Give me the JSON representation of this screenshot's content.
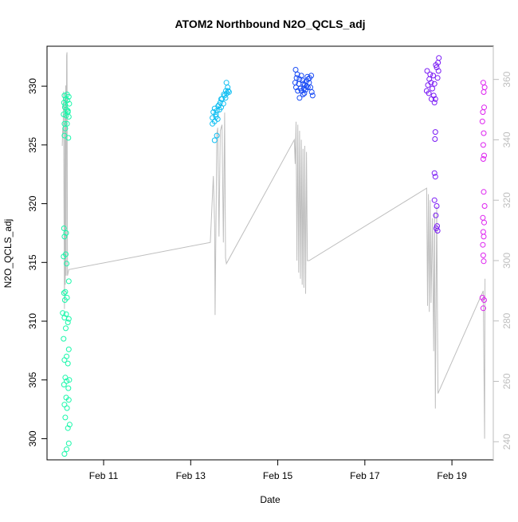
{
  "chart_data": {
    "type": "scatter",
    "title": "ATOM2 Northbound N2O_QCLS_adj",
    "xlabel": "Date",
    "ylabel": "N2O_QCLS_adj",
    "x_unit": "days since Feb 10",
    "xlim": [
      9.7,
      19.95
    ],
    "ylim": [
      298.2,
      333.4
    ],
    "y2lim": [
      234,
      371
    ],
    "x_ticks": [
      {
        "value": 11,
        "label": "Feb 11"
      },
      {
        "value": 13,
        "label": "Feb 13"
      },
      {
        "value": 15,
        "label": "Feb 15"
      },
      {
        "value": 17,
        "label": "Feb 17"
      },
      {
        "value": 19,
        "label": "Feb 19"
      }
    ],
    "y_ticks": [
      300,
      305,
      310,
      315,
      320,
      325,
      330
    ],
    "y2_ticks": [
      240,
      260,
      280,
      300,
      320,
      340,
      360
    ],
    "colors": {
      "flight1": "#19f7aa",
      "flight2": "#11bff2",
      "flight3": "#1a4cf5",
      "flight4": "#7a1af5",
      "flight5": "#dd22f0",
      "secondary_line": "#bebebe",
      "axis": "#000000"
    },
    "series": [
      {
        "name": "flight1",
        "color": "#19f7aa",
        "points": [
          [
            10.1,
            298.7
          ],
          [
            10.15,
            299.1
          ],
          [
            10.2,
            299.6
          ],
          [
            10.18,
            300.9
          ],
          [
            10.22,
            301.2
          ],
          [
            10.12,
            301.8
          ],
          [
            10.16,
            302.6
          ],
          [
            10.1,
            302.9
          ],
          [
            10.2,
            303.3
          ],
          [
            10.14,
            303.5
          ],
          [
            10.19,
            304.3
          ],
          [
            10.09,
            304.6
          ],
          [
            10.15,
            304.9
          ],
          [
            10.21,
            305.0
          ],
          [
            10.12,
            305.2
          ],
          [
            10.18,
            306.4
          ],
          [
            10.1,
            306.7
          ],
          [
            10.15,
            307.0
          ],
          [
            10.2,
            307.6
          ],
          [
            10.08,
            308.5
          ],
          [
            10.13,
            309.4
          ],
          [
            10.18,
            309.9
          ],
          [
            10.1,
            310.3
          ],
          [
            10.14,
            310.6
          ],
          [
            10.2,
            310.2
          ],
          [
            10.06,
            310.7
          ],
          [
            10.11,
            311.8
          ],
          [
            10.16,
            312.0
          ],
          [
            10.09,
            312.4
          ],
          [
            10.12,
            312.5
          ],
          [
            10.2,
            313.4
          ],
          [
            10.15,
            314.9
          ],
          [
            10.08,
            315.5
          ],
          [
            10.13,
            315.7
          ],
          [
            10.1,
            317.2
          ],
          [
            10.14,
            317.5
          ],
          [
            10.09,
            317.9
          ],
          [
            10.1,
            325.8
          ],
          [
            10.19,
            325.6
          ],
          [
            10.12,
            326.4
          ],
          [
            10.16,
            326.8
          ],
          [
            10.1,
            326.8
          ],
          [
            10.2,
            327.4
          ],
          [
            10.08,
            327.6
          ],
          [
            10.14,
            327.5
          ],
          [
            10.18,
            327.9
          ],
          [
            10.11,
            328.2
          ],
          [
            10.15,
            328.0
          ],
          [
            10.21,
            328.5
          ],
          [
            10.09,
            328.6
          ],
          [
            10.17,
            328.8
          ],
          [
            10.13,
            328.9
          ],
          [
            10.2,
            329.1
          ],
          [
            10.1,
            329.2
          ],
          [
            10.16,
            329.3
          ],
          [
            10.12,
            328.4
          ],
          [
            10.18,
            327.8
          ]
        ]
      },
      {
        "name": "flight2",
        "color": "#11bff2",
        "points": [
          [
            13.55,
            325.4
          ],
          [
            13.6,
            325.8
          ],
          [
            13.5,
            326.8
          ],
          [
            13.55,
            327.0
          ],
          [
            13.62,
            327.2
          ],
          [
            13.5,
            327.3
          ],
          [
            13.58,
            327.6
          ],
          [
            13.52,
            327.8
          ],
          [
            13.66,
            328.0
          ],
          [
            13.6,
            327.9
          ],
          [
            13.55,
            328.1
          ],
          [
            13.7,
            328.2
          ],
          [
            13.63,
            328.3
          ],
          [
            13.75,
            328.5
          ],
          [
            13.68,
            328.6
          ],
          [
            13.72,
            328.9
          ],
          [
            13.8,
            329.0
          ],
          [
            13.78,
            329.2
          ],
          [
            13.83,
            329.4
          ],
          [
            13.86,
            329.6
          ],
          [
            13.81,
            329.6
          ],
          [
            13.76,
            329.3
          ],
          [
            13.88,
            329.5
          ],
          [
            13.85,
            329.9
          ],
          [
            13.82,
            330.3
          ],
          [
            13.7,
            328.9
          ],
          [
            13.65,
            328.4
          ],
          [
            13.58,
            327.4
          ]
        ]
      },
      {
        "name": "flight3",
        "color": "#1a4cf5",
        "points": [
          [
            15.4,
            330.3
          ],
          [
            15.43,
            330.7
          ],
          [
            15.41,
            331.4
          ],
          [
            15.45,
            331.0
          ],
          [
            15.5,
            330.6
          ],
          [
            15.48,
            330.2
          ],
          [
            15.52,
            329.8
          ],
          [
            15.55,
            329.6
          ],
          [
            15.58,
            329.3
          ],
          [
            15.6,
            329.8
          ],
          [
            15.62,
            330.1
          ],
          [
            15.65,
            330.4
          ],
          [
            15.68,
            330.8
          ],
          [
            15.7,
            330.6
          ],
          [
            15.72,
            330.3
          ],
          [
            15.75,
            329.9
          ],
          [
            15.78,
            329.5
          ],
          [
            15.8,
            329.2
          ],
          [
            15.5,
            329.0
          ],
          [
            15.46,
            329.6
          ],
          [
            15.57,
            330.5
          ],
          [
            15.66,
            330.0
          ],
          [
            15.73,
            330.7
          ],
          [
            15.42,
            329.9
          ],
          [
            15.61,
            329.4
          ],
          [
            15.69,
            329.9
          ],
          [
            15.77,
            330.9
          ],
          [
            15.54,
            330.9
          ],
          [
            15.59,
            330.2
          ],
          [
            15.64,
            329.7
          ]
        ]
      },
      {
        "name": "flight4",
        "color": "#7a1af5",
        "points": [
          [
            18.42,
            329.6
          ],
          [
            18.45,
            330.1
          ],
          [
            18.48,
            330.6
          ],
          [
            18.5,
            331.0
          ],
          [
            18.43,
            331.3
          ],
          [
            18.52,
            330.3
          ],
          [
            18.55,
            329.8
          ],
          [
            18.58,
            329.2
          ],
          [
            18.6,
            328.6
          ],
          [
            18.62,
            328.9
          ],
          [
            18.65,
            331.6
          ],
          [
            18.68,
            332.0
          ],
          [
            18.7,
            332.4
          ],
          [
            18.63,
            331.8
          ],
          [
            18.57,
            330.9
          ],
          [
            18.47,
            329.4
          ],
          [
            18.53,
            328.9
          ],
          [
            18.6,
            330.2
          ],
          [
            18.67,
            330.7
          ],
          [
            18.69,
            331.3
          ],
          [
            18.62,
            326.1
          ],
          [
            18.61,
            325.5
          ],
          [
            18.6,
            322.6
          ],
          [
            18.62,
            322.3
          ],
          [
            18.6,
            320.3
          ],
          [
            18.65,
            319.8
          ],
          [
            18.63,
            319.0
          ],
          [
            18.66,
            318.1
          ],
          [
            18.64,
            317.9
          ],
          [
            18.67,
            317.7
          ]
        ]
      },
      {
        "name": "flight5",
        "color": "#dd22f0",
        "points": [
          [
            19.72,
            330.3
          ],
          [
            19.75,
            329.9
          ],
          [
            19.73,
            329.5
          ],
          [
            19.74,
            328.2
          ],
          [
            19.71,
            327.8
          ],
          [
            19.7,
            327.0
          ],
          [
            19.73,
            326.0
          ],
          [
            19.72,
            325.0
          ],
          [
            19.74,
            324.1
          ],
          [
            19.72,
            323.8
          ],
          [
            19.73,
            321.0
          ],
          [
            19.75,
            319.8
          ],
          [
            19.71,
            318.8
          ],
          [
            19.74,
            318.4
          ],
          [
            19.72,
            317.6
          ],
          [
            19.73,
            317.2
          ],
          [
            19.71,
            316.5
          ],
          [
            19.72,
            315.6
          ],
          [
            19.73,
            315.1
          ],
          [
            19.74,
            311.8
          ],
          [
            19.72,
            311.1
          ],
          [
            19.7,
            312.0
          ]
        ]
      }
    ],
    "secondary_series": {
      "name": "secondary",
      "color": "#bebebe",
      "axis": "right",
      "points": [
        [
          10.05,
          338
        ],
        [
          10.06,
          344
        ],
        [
          10.07,
          342
        ],
        [
          10.08,
          356
        ],
        [
          10.09,
          318
        ],
        [
          10.1,
          284
        ],
        [
          10.11,
          354
        ],
        [
          10.12,
          292
        ],
        [
          10.13,
          358
        ],
        [
          10.14,
          295
        ],
        [
          10.15,
          368
        ],
        [
          10.16,
          369
        ],
        [
          10.17,
          295
        ],
        [
          10.2,
          297
        ],
        [
          13.45,
          306
        ],
        [
          13.52,
          328
        ],
        [
          13.55,
          312
        ],
        [
          13.56,
          282
        ],
        [
          13.6,
          342
        ],
        [
          13.62,
          344
        ],
        [
          13.65,
          308
        ],
        [
          13.68,
          343
        ],
        [
          13.72,
          345
        ],
        [
          13.75,
          306
        ],
        [
          13.78,
          349
        ],
        [
          13.8,
          301
        ],
        [
          13.82,
          299
        ],
        [
          15.38,
          340
        ],
        [
          15.4,
          332
        ],
        [
          15.42,
          346
        ],
        [
          15.44,
          300
        ],
        [
          15.46,
          345
        ],
        [
          15.48,
          296
        ],
        [
          15.5,
          343
        ],
        [
          15.52,
          294
        ],
        [
          15.54,
          340
        ],
        [
          15.56,
          292
        ],
        [
          15.58,
          337
        ],
        [
          15.6,
          291
        ],
        [
          15.62,
          338
        ],
        [
          15.64,
          289
        ],
        [
          15.66,
          336
        ],
        [
          15.68,
          300
        ],
        [
          15.72,
          300
        ],
        [
          18.42,
          324
        ],
        [
          18.44,
          285
        ],
        [
          18.46,
          322
        ],
        [
          18.48,
          283
        ],
        [
          18.5,
          320
        ],
        [
          18.52,
          286
        ],
        [
          18.55,
          314
        ],
        [
          18.58,
          270
        ],
        [
          18.6,
          316
        ],
        [
          18.62,
          251
        ],
        [
          18.65,
          318
        ],
        [
          18.68,
          256
        ],
        [
          19.72,
          290
        ],
        [
          19.75,
          241
        ],
        [
          19.76,
          294
        ]
      ]
    }
  }
}
